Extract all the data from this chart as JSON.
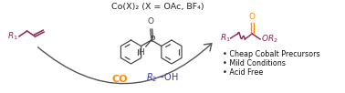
{
  "bg_color": "#ffffff",
  "title_text": "Co(X)₂ (X = OAc, BF₄)",
  "title_color": "#222222",
  "title_fontsize": 6.8,
  "olefin_color": "#8B2252",
  "product_color": "#8B2252",
  "product_o_color": "#FF8C00",
  "co_color": "#FF8C00",
  "r2oh_color": "#3333BB",
  "bullet_color": "#111111",
  "bullet_fontsize": 5.8,
  "bullets": [
    "Cheap Cobalt Precursors",
    "Mild Conditions",
    "Acid Free"
  ],
  "spo_color": "#444444",
  "arrow_color": "#555555"
}
